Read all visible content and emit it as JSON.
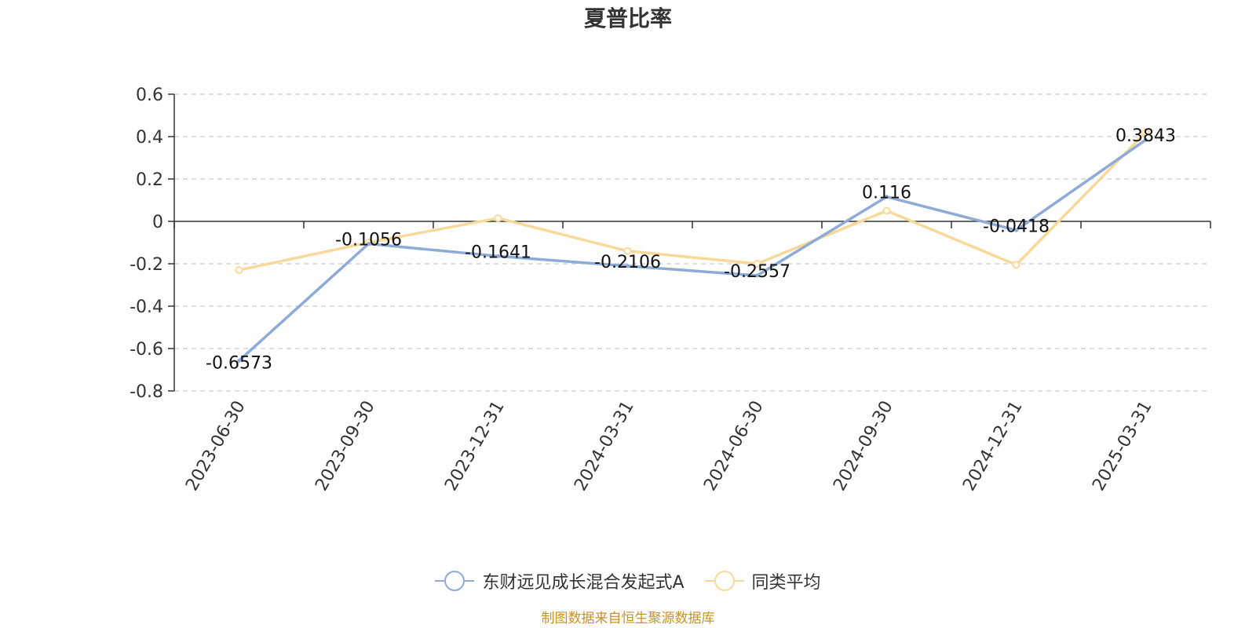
{
  "chart_data": {
    "type": "line",
    "title": "夏普比率",
    "categories": [
      "2023-06-30",
      "2023-09-30",
      "2023-12-31",
      "2024-03-31",
      "2024-06-30",
      "2024-09-30",
      "2024-12-31",
      "2025-03-31"
    ],
    "yticks": [
      "0.6",
      "0.4",
      "0.2",
      "0",
      "-0.2",
      "-0.4",
      "-0.6",
      "-0.8"
    ],
    "ylim": [
      -0.8,
      0.6
    ],
    "grid": true,
    "legend_position": "bottom",
    "series": [
      {
        "name": "东财远见成长混合发起式A",
        "color": "#8eabd8",
        "values": [
          -0.6573,
          -0.1056,
          -0.1641,
          -0.2106,
          -0.2557,
          0.116,
          -0.0418,
          0.3843
        ],
        "labels": [
          "-0.6573",
          "-0.1056",
          "-0.1641",
          "-0.2106",
          "-0.2557",
          "0.116",
          "-0.0418",
          "0.3843"
        ]
      },
      {
        "name": "同类平均",
        "color": "#f9d99a",
        "values": [
          -0.23,
          -0.1,
          0.015,
          -0.14,
          -0.2,
          0.05,
          -0.205,
          0.42
        ]
      }
    ]
  },
  "source_note": "制图数据来自恒生聚源数据库"
}
